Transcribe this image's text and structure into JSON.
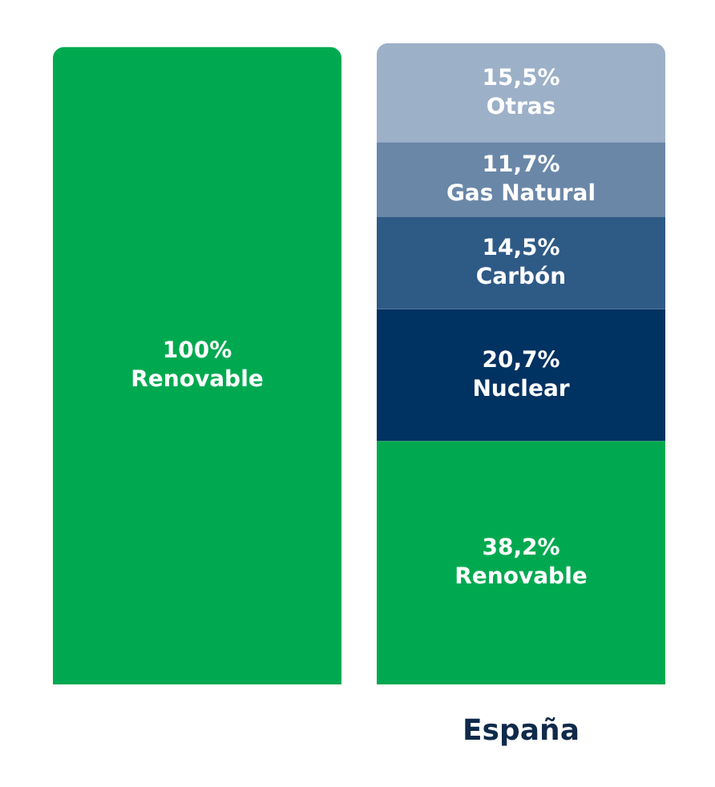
{
  "chart_data": {
    "type": "bar",
    "stacked": true,
    "categories": [
      null,
      "España"
    ],
    "legend": false,
    "tick_labels": "x",
    "series": [
      {
        "name": "Renovable",
        "color": "#00a950",
        "values": [
          100,
          38.2
        ],
        "value_labels": [
          "100%",
          "38,2%"
        ]
      },
      {
        "name": "Nuclear",
        "color": "#003262",
        "values": [
          null,
          20.7
        ],
        "value_labels": [
          null,
          "20,7%"
        ]
      },
      {
        "name": "Carbón",
        "color": "#2e5a86",
        "values": [
          null,
          14.5
        ],
        "value_labels": [
          null,
          "14,5%"
        ]
      },
      {
        "name": "Gas Natural",
        "color": "#6a87a8",
        "values": [
          null,
          11.7
        ],
        "value_labels": [
          null,
          "11,7%"
        ]
      },
      {
        "name": "Otras",
        "color": "#9cb0c8",
        "values": [
          null,
          15.5
        ],
        "value_labels": [
          null,
          "15,5%"
        ]
      }
    ]
  }
}
